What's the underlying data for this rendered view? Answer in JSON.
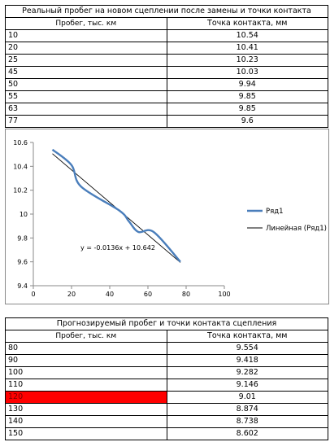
{
  "table1": {
    "title": "Реальный пробег на новом сцеплении после замены и точки контакта",
    "col1": "Пробег, тыс. км",
    "col2": "Точка контакта, мм",
    "rows": [
      {
        "km": "10",
        "mm": "10.54"
      },
      {
        "km": "20",
        "mm": "10.41"
      },
      {
        "km": "25",
        "mm": "10.23"
      },
      {
        "km": "45",
        "mm": "10.03"
      },
      {
        "km": "50",
        "mm": "9.94"
      },
      {
        "km": "55",
        "mm": "9.85"
      },
      {
        "km": "63",
        "mm": "9.85"
      },
      {
        "km": "77",
        "mm": "9.6"
      }
    ]
  },
  "chart_data": {
    "type": "scatter",
    "series": [
      {
        "name": "Ряд1",
        "color": "#4a7ebb",
        "style": "smoothed line",
        "x": [
          10,
          20,
          25,
          45,
          50,
          55,
          63,
          77
        ],
        "y": [
          10.54,
          10.41,
          10.23,
          10.03,
          9.94,
          9.85,
          9.85,
          9.6
        ]
      }
    ],
    "trendline": {
      "name": "Линейная (Ряд1)",
      "color": "#000000",
      "slope": -0.0136,
      "intercept": 10.642,
      "x_range": [
        10,
        77
      ]
    },
    "equation_label": "y = -0.0136x + 10.642",
    "xlim": [
      0,
      100
    ],
    "ylim": [
      9.4,
      10.6
    ],
    "x_ticks": [
      "0",
      "20",
      "40",
      "60",
      "80",
      "100"
    ],
    "y_ticks": [
      "10.6",
      "10.4",
      "10.2",
      "10",
      "9.8",
      "9.6",
      "9.4"
    ],
    "legend_position": "right",
    "grid": false
  },
  "table2": {
    "title": "Прогнозируемый пробег и точки контакта сцепления",
    "col1": "Пробег, тыс. км",
    "col2": "Точка контакта, мм",
    "highlight_color": "#ff0000",
    "rows": [
      {
        "km": "80",
        "mm": "9.554",
        "highlight": false
      },
      {
        "km": "90",
        "mm": "9.418",
        "highlight": false
      },
      {
        "km": "100",
        "mm": "9.282",
        "highlight": false
      },
      {
        "km": "110",
        "mm": "9.146",
        "highlight": false
      },
      {
        "km": "120",
        "mm": "9.01",
        "highlight": true
      },
      {
        "km": "130",
        "mm": "8.874",
        "highlight": false
      },
      {
        "km": "140",
        "mm": "8.738",
        "highlight": false
      },
      {
        "km": "150",
        "mm": "8.602",
        "highlight": false
      }
    ]
  }
}
